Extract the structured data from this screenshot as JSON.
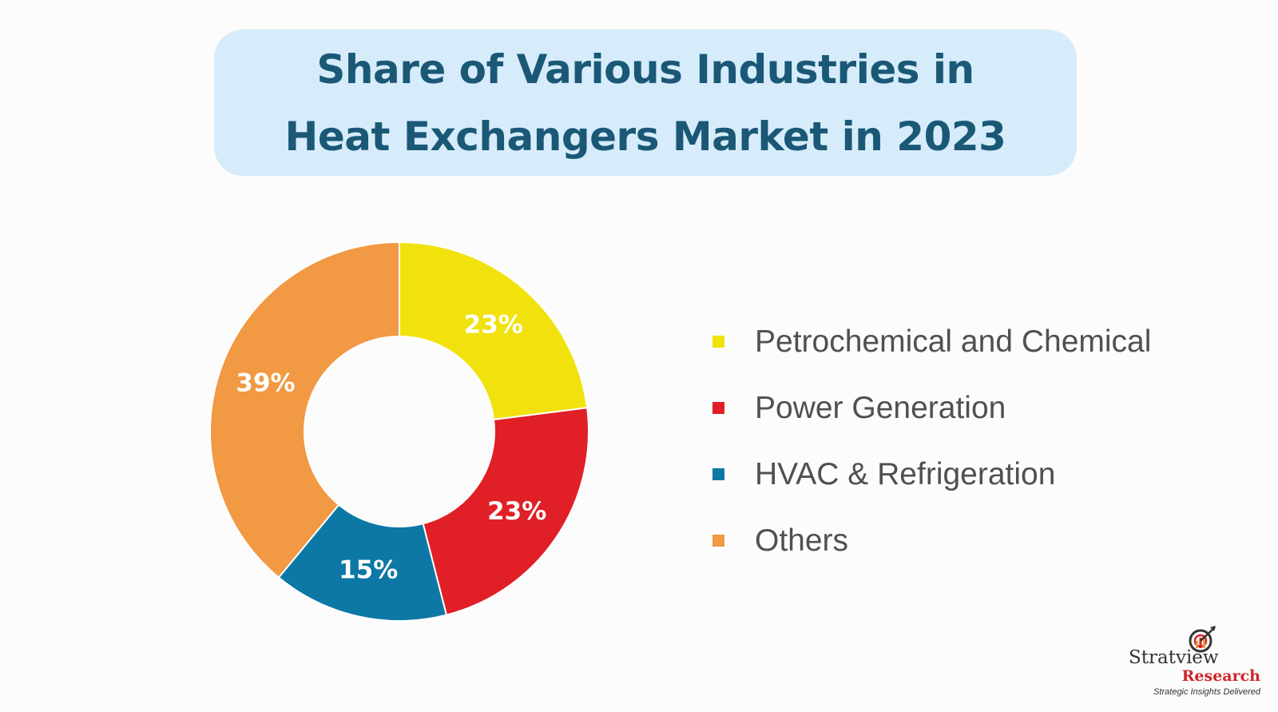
{
  "chart_data": {
    "type": "pie",
    "title_lines": [
      "Share of Various Industries in",
      "Heat Exchangers Market in 2023"
    ],
    "categories": [
      "Petrochemical and Chemical",
      "Power Generation",
      "HVAC & Refrigeration",
      "Others"
    ],
    "values": [
      23,
      23,
      15,
      39
    ],
    "value_labels": [
      "23%",
      "23%",
      "15%",
      "39%"
    ],
    "colors": [
      "#f1e20e",
      "#e01f26",
      "#0d78a6",
      "#f19943"
    ],
    "donut": true,
    "legend_position": "right"
  },
  "logo": {
    "name": "Stratview",
    "sub": "Research",
    "tagline": "Strategic Insights Delivered"
  }
}
